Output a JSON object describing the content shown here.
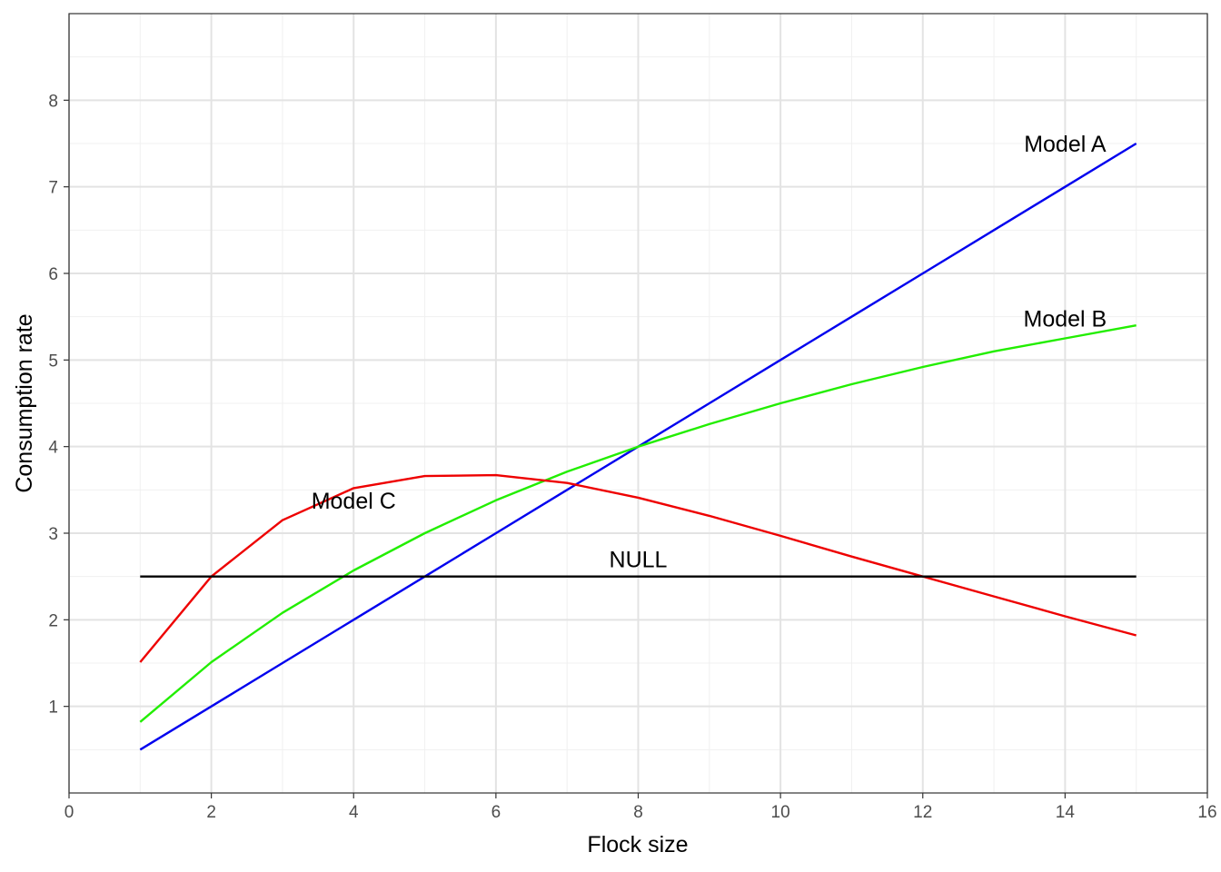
{
  "chart_data": {
    "type": "line",
    "title": "",
    "xlabel": "Flock size",
    "ylabel": "Consumption rate",
    "xlim": [
      0,
      16
    ],
    "ylim": [
      0,
      9
    ],
    "x_ticks": [
      0,
      2,
      4,
      6,
      8,
      10,
      12,
      14,
      16
    ],
    "y_ticks": [
      1,
      2,
      3,
      4,
      5,
      6,
      7,
      8
    ],
    "grid": true,
    "legend": "none",
    "x": [
      1,
      2,
      3,
      4,
      5,
      6,
      7,
      8,
      9,
      10,
      11,
      12,
      13,
      14,
      15
    ],
    "series": [
      {
        "name": "Model A",
        "color": "#0000ee",
        "values": [
          0.5,
          1.0,
          1.5,
          2.0,
          2.5,
          3.0,
          3.5,
          4.0,
          4.5,
          5.0,
          5.5,
          6.0,
          6.5,
          7.0,
          7.5
        ],
        "label_at": [
          14.0,
          7.5
        ]
      },
      {
        "name": "Model B",
        "color": "#22ee00",
        "values": [
          0.82,
          1.51,
          2.08,
          2.57,
          3.0,
          3.38,
          3.71,
          4.0,
          4.26,
          4.5,
          4.72,
          4.92,
          5.1,
          5.25,
          5.4
        ],
        "label_at": [
          14.0,
          5.48
        ]
      },
      {
        "name": "Model C",
        "color": "#ee0000",
        "values": [
          1.51,
          2.5,
          3.15,
          3.52,
          3.66,
          3.67,
          3.58,
          3.41,
          3.2,
          2.97,
          2.73,
          2.5,
          2.27,
          2.04,
          1.82
        ],
        "label_at": [
          4.0,
          3.38
        ]
      },
      {
        "name": "NULL",
        "color": "#000000",
        "values": [
          2.5,
          2.5,
          2.5,
          2.5,
          2.5,
          2.5,
          2.5,
          2.5,
          2.5,
          2.5,
          2.5,
          2.5,
          2.5,
          2.5,
          2.5
        ],
        "label_at": [
          8.0,
          2.7
        ]
      }
    ]
  }
}
